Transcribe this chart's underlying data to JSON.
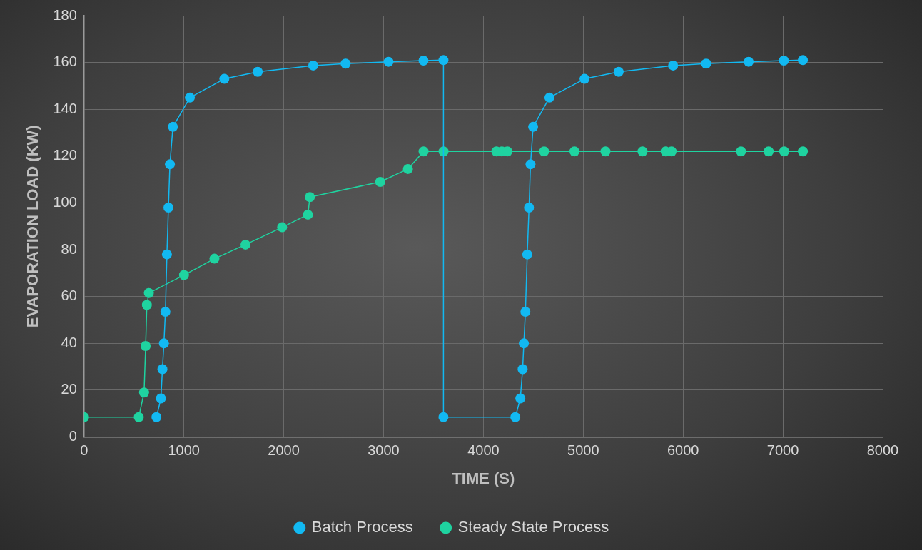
{
  "chart_data": {
    "type": "line",
    "xlabel": "TIME (S)",
    "ylabel": "EVAPORATION LOAD (KW)",
    "xlim": [
      0,
      8000
    ],
    "xticks": [
      0,
      1000,
      2000,
      3000,
      4000,
      5000,
      6000,
      7000,
      8000
    ],
    "ylim": [
      0,
      180
    ],
    "yticks": [
      0,
      20,
      40,
      60,
      80,
      100,
      120,
      140,
      160,
      180
    ],
    "grid": true,
    "legend": "bottom",
    "marker": "circle",
    "line_style": "solid",
    "series": [
      {
        "name": "Batch Process",
        "color": "#12b9f2",
        "x": [
          725,
          770,
          785,
          800,
          815,
          830,
          845,
          860,
          890,
          1060,
          1405,
          1740,
          2295,
          2620,
          3050,
          3400,
          3600,
          3600,
          4320,
          4370,
          4393,
          4405,
          4421,
          4439,
          4457,
          4472,
          4498,
          4661,
          5013,
          5355,
          5900,
          6231,
          6657,
          7009,
          7200
        ],
        "values": [
          8.5,
          16.5,
          29,
          40,
          53.5,
          78,
          98,
          116.5,
          132.5,
          145,
          153,
          156,
          158.7,
          159.5,
          160.3,
          160.8,
          161,
          8.5,
          8.5,
          16.5,
          29,
          40,
          53.5,
          78,
          98,
          116.5,
          132.5,
          145,
          153,
          156,
          158.7,
          159.5,
          160.3,
          160.8,
          161
        ]
      },
      {
        "name": "Steady State Process",
        "color": "#1fd3a0",
        "x": [
          0,
          548,
          601,
          617,
          629,
          649,
          1001,
          1306,
          1617,
          1984,
          2242,
          2262,
          2966,
          3244,
          3401,
          3601,
          4130,
          4185,
          4240,
          4608,
          4912,
          5223,
          5594,
          5825,
          5885,
          6580,
          6857,
          7013,
          7200
        ],
        "values": [
          8.5,
          8.5,
          19,
          38.9,
          56.4,
          61.5,
          69.2,
          76.2,
          82.2,
          89.6,
          95,
          102.5,
          109,
          114.5,
          122,
          122,
          122,
          122,
          122,
          122,
          122,
          122,
          122,
          122,
          122,
          122,
          122,
          122,
          122
        ]
      }
    ]
  }
}
